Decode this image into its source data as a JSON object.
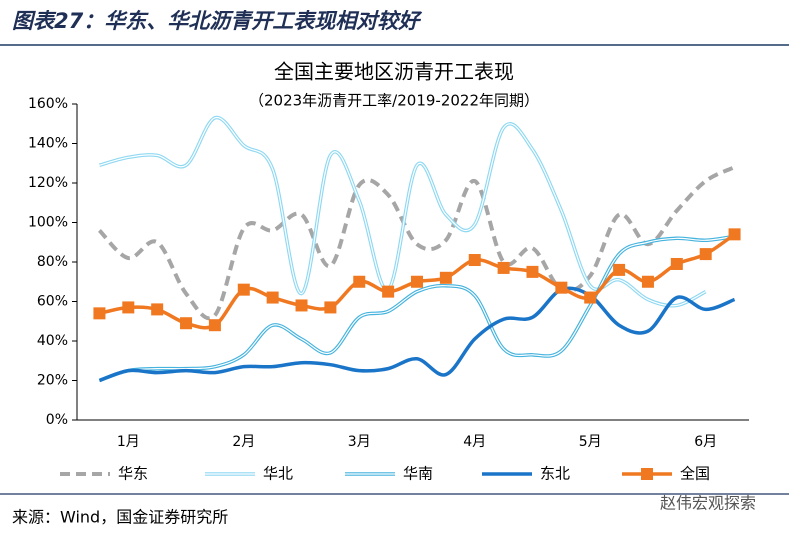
{
  "header": "图表27：华东、华北沥青开工表现相对较好",
  "source": "来源：Wind，国金证券研究所",
  "watermark": "赵伟宏观探索",
  "chart_data": {
    "type": "line",
    "title": "全国主要地区沥青开工表现",
    "subtitle": "（2023年沥青开工率/2019-2022年同期）",
    "categories": [
      null,
      "1月",
      null,
      null,
      null,
      "2月",
      null,
      null,
      null,
      "3月",
      null,
      null,
      null,
      "4月",
      null,
      null,
      null,
      "5月",
      null,
      null,
      null,
      "6月",
      null
    ],
    "ylim": [
      0,
      160
    ],
    "yticks": [
      {
        "value": 0,
        "label": "0%"
      },
      {
        "value": 20,
        "label": "20%"
      },
      {
        "value": 40,
        "label": "40%"
      },
      {
        "value": 60,
        "label": "60%"
      },
      {
        "value": 80,
        "label": "80%"
      },
      {
        "value": 100,
        "label": "100%"
      },
      {
        "value": 120,
        "label": "120%"
      },
      {
        "value": 140,
        "label": "140%"
      },
      {
        "value": 160,
        "label": "160%"
      }
    ],
    "series": [
      {
        "name": "华东",
        "color": "#a6a6a6",
        "style": "dashed",
        "values": [
          96,
          82,
          90,
          64,
          53,
          97,
          96,
          104,
          78,
          119,
          114,
          89,
          91,
          121,
          80,
          87,
          66,
          73,
          104,
          89,
          106,
          121,
          128
        ]
      },
      {
        "name": "华北",
        "color": "#8fd8f2",
        "style": "double",
        "values": [
          129,
          133,
          134,
          129,
          153,
          139,
          127,
          64,
          134,
          111,
          66,
          129,
          104,
          99,
          148,
          137,
          106,
          68,
          71,
          61,
          58,
          65,
          null
        ]
      },
      {
        "name": "华南",
        "color": "#45b3de",
        "style": "double",
        "values": [
          20,
          25,
          26,
          26,
          27,
          33,
          48,
          41,
          34,
          52,
          55,
          65,
          68,
          63,
          36,
          33,
          35,
          58,
          84,
          90,
          92,
          91,
          93
        ]
      },
      {
        "name": "东北",
        "color": "#1a75c9",
        "style": "thick",
        "values": [
          20,
          25,
          24,
          25,
          24,
          27,
          27,
          29,
          28,
          25,
          26,
          31,
          23,
          41,
          51,
          52,
          66,
          63,
          48,
          45,
          62,
          56,
          61
        ]
      },
      {
        "name": "全国",
        "color": "#f07820",
        "style": "marker",
        "values": [
          54,
          57,
          56,
          49,
          48,
          66,
          62,
          58,
          57,
          70,
          65,
          70,
          72,
          81,
          77,
          75,
          67,
          62,
          76,
          70,
          79,
          84,
          94
        ]
      }
    ]
  }
}
